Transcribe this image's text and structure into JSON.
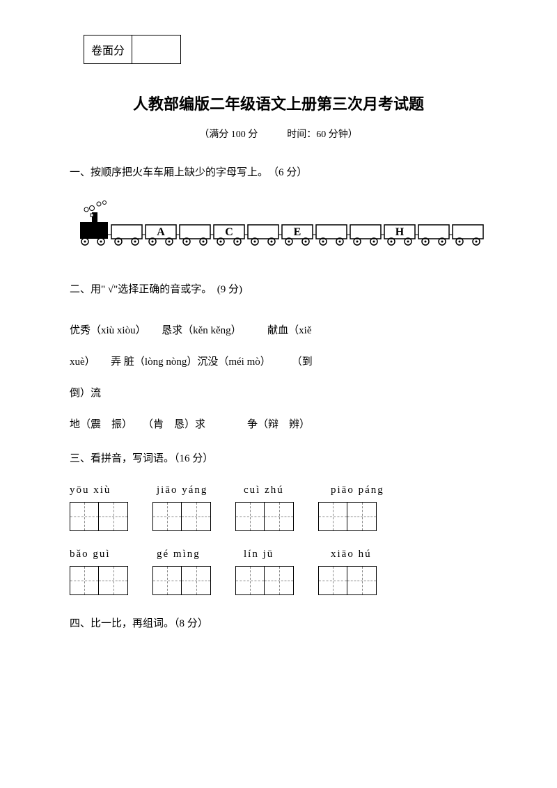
{
  "scoreBox": {
    "label": "卷面分"
  },
  "title": "人教部编版二年级语文上册第三次月考试题",
  "subtitle": "（满分 100 分　　　时间：60 分钟）",
  "section1": {
    "heading": "一、按顺序把火车车厢上缺少的字母写上。　（6 分）",
    "letters": [
      "",
      "A",
      "",
      "C",
      "",
      "E",
      "",
      "",
      "H",
      "",
      ""
    ]
  },
  "section2": {
    "heading": "二、用\" √\"选择正确的音或字。　(9 分)",
    "line1": "优秀（xiù xiòu）　　恳求（kěn kěng）　　　献血（xiě",
    "line2": "xuè）　　弄 脏（lòng nòng）沉没（méi mò）　　　（到",
    "line3": "倒）流",
    "line4": " 地（震　振）　　（肯　恳）求　　　　争（辩　辨）"
  },
  "section3": {
    "heading": "三、看拼音，写词语。（16 分）",
    "row1": [
      "yōu xiù",
      "jiāo yáng",
      "cuì zhú",
      "piāo páng"
    ],
    "row2": [
      "bǎo guì",
      "gé mìng",
      "lín jū",
      "xiāo hú"
    ]
  },
  "section4": {
    "heading": "四、比一比，再组词。（8 分）"
  },
  "colors": {
    "text": "#000000",
    "background": "#ffffff",
    "dashed": "#888888"
  }
}
